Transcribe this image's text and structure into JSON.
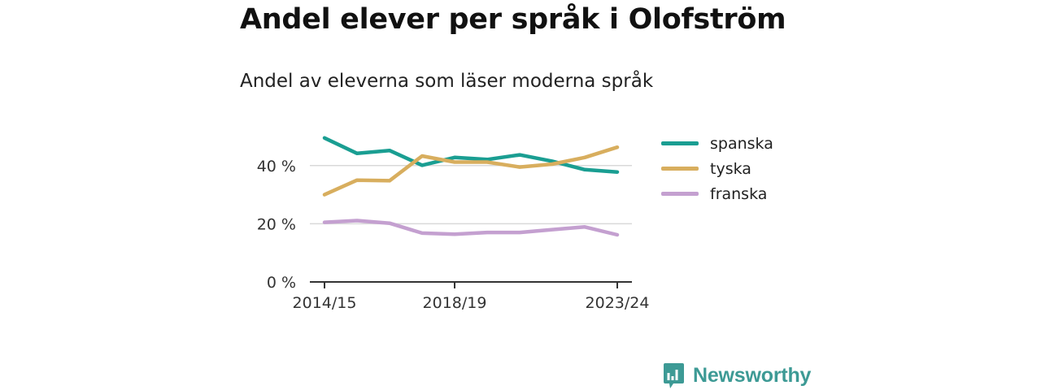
{
  "title": "Andel elever per språk i Olofström",
  "subtitle": "Andel av eleverna som läser moderna språk",
  "brand": {
    "name": "Newsworthy",
    "icon": "newsworthy-logo-icon",
    "color": "#3d9a95"
  },
  "chart_data": {
    "type": "line",
    "title": "Andel elever per språk i Olofström",
    "subtitle": "Andel av eleverna som läser moderna språk",
    "x": [
      "2014/15",
      "2015/16",
      "2016/17",
      "2017/18",
      "2018/19",
      "2019/20",
      "2020/21",
      "2021/22",
      "2022/23",
      "2023/24"
    ],
    "x_tick_labels": [
      "2014/15",
      "2018/19",
      "2023/24"
    ],
    "y_ticks": [
      0,
      20,
      40
    ],
    "y_tick_labels": [
      "0 %",
      "20 %",
      "40 %"
    ],
    "ylim": [
      0,
      50
    ],
    "y_gridlines": [
      20,
      40
    ],
    "legend_position": "right",
    "series": [
      {
        "name": "spanska",
        "color": "#1a9e92",
        "values": [
          49.5,
          44.2,
          45.2,
          40.1,
          42.8,
          42.1,
          43.7,
          41.5,
          38.6,
          37.8
        ]
      },
      {
        "name": "tyska",
        "color": "#d8ae5e",
        "values": [
          30.0,
          35.0,
          34.8,
          43.3,
          41.2,
          41.2,
          39.5,
          40.5,
          42.8,
          46.3
        ]
      },
      {
        "name": "franska",
        "color": "#c4a0d0",
        "values": [
          20.5,
          21.1,
          20.2,
          16.8,
          16.4,
          17.0,
          17.0,
          18.0,
          18.9,
          16.2
        ]
      }
    ]
  }
}
